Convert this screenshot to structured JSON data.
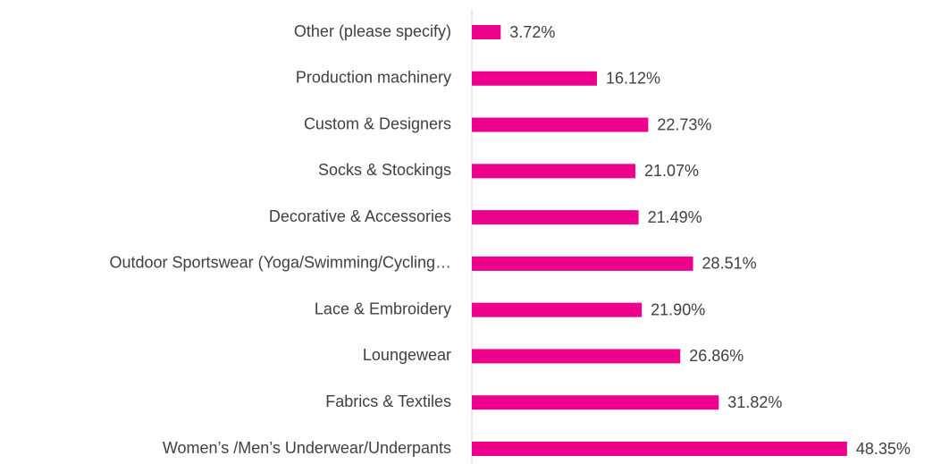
{
  "chart_data": {
    "type": "bar",
    "orientation": "horizontal",
    "categories": [
      "Other (please specify)",
      "Production machinery",
      "Custom & Designers",
      "Socks & Stockings",
      "Decorative & Accessories",
      "Outdoor Sportswear (Yoga/Swimming/Cycling…",
      "Lace & Embroidery",
      "Loungewear",
      "Fabrics & Textiles",
      "Women’s /Men’s Underwear/Underpants"
    ],
    "values": [
      3.72,
      16.12,
      22.73,
      21.07,
      21.49,
      28.51,
      21.9,
      26.86,
      31.82,
      48.35
    ],
    "value_labels": [
      "3.72%",
      "16.12%",
      "22.73%",
      "21.07%",
      "21.49%",
      "28.51%",
      "21.90%",
      "26.86%",
      "31.82%",
      "48.35%"
    ],
    "color": "#ec008c",
    "xlim": [
      0,
      60
    ]
  }
}
